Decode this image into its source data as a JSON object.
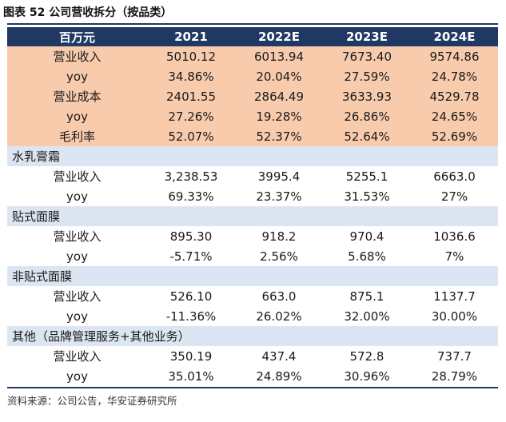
{
  "caption": "图表 52 公司营收拆分（按品类）",
  "header": [
    "百万元",
    "2021",
    "2022E",
    "2023E",
    "2024E"
  ],
  "summary_rows": [
    {
      "label": "营业收入",
      "values": [
        "5010.12",
        "6013.94",
        "7673.40",
        "9574.86"
      ]
    },
    {
      "label": "yoy",
      "values": [
        "34.86%",
        "20.04%",
        "27.59%",
        "24.78%"
      ]
    },
    {
      "label": "营业成本",
      "values": [
        "2401.55",
        "2864.49",
        "3633.93",
        "4529.78"
      ]
    },
    {
      "label": "yoy",
      "values": [
        "27.26%",
        "19.28%",
        "26.86%",
        "24.65%"
      ]
    },
    {
      "label": "毛利率",
      "values": [
        "52.07%",
        "52.37%",
        "52.64%",
        "52.69%"
      ]
    }
  ],
  "sections": [
    {
      "title": "水乳膏霜",
      "rows": [
        {
          "label": "营业收入",
          "values": [
            "3,238.53",
            "3995.4",
            "5255.1",
            "6663.0"
          ]
        },
        {
          "label": "yoy",
          "values": [
            "69.33%",
            "23.37%",
            "31.53%",
            "27%"
          ]
        }
      ]
    },
    {
      "title": "贴式面膜",
      "rows": [
        {
          "label": "营业收入",
          "values": [
            "895.30",
            "918.2",
            "970.4",
            "1036.6"
          ]
        },
        {
          "label": "yoy",
          "values": [
            "-5.71%",
            "2.56%",
            "5.68%",
            "7%"
          ]
        }
      ]
    },
    {
      "title": "非贴式面膜",
      "rows": [
        {
          "label": "营业收入",
          "values": [
            "526.10",
            "663.0",
            "875.1",
            "1137.7"
          ]
        },
        {
          "label": "yoy",
          "values": [
            "-11.36%",
            "26.02%",
            "32.00%",
            "30.00%"
          ]
        }
      ]
    },
    {
      "title": "其他（品牌管理服务+其他业务）",
      "rows": [
        {
          "label": "营业收入",
          "values": [
            "350.19",
            "437.4",
            "572.8",
            "737.7"
          ]
        },
        {
          "label": "yoy",
          "values": [
            "35.01%",
            "24.89%",
            "30.96%",
            "28.79%"
          ]
        }
      ]
    }
  ],
  "source": "资料来源：公司公告，华安证券研究所"
}
